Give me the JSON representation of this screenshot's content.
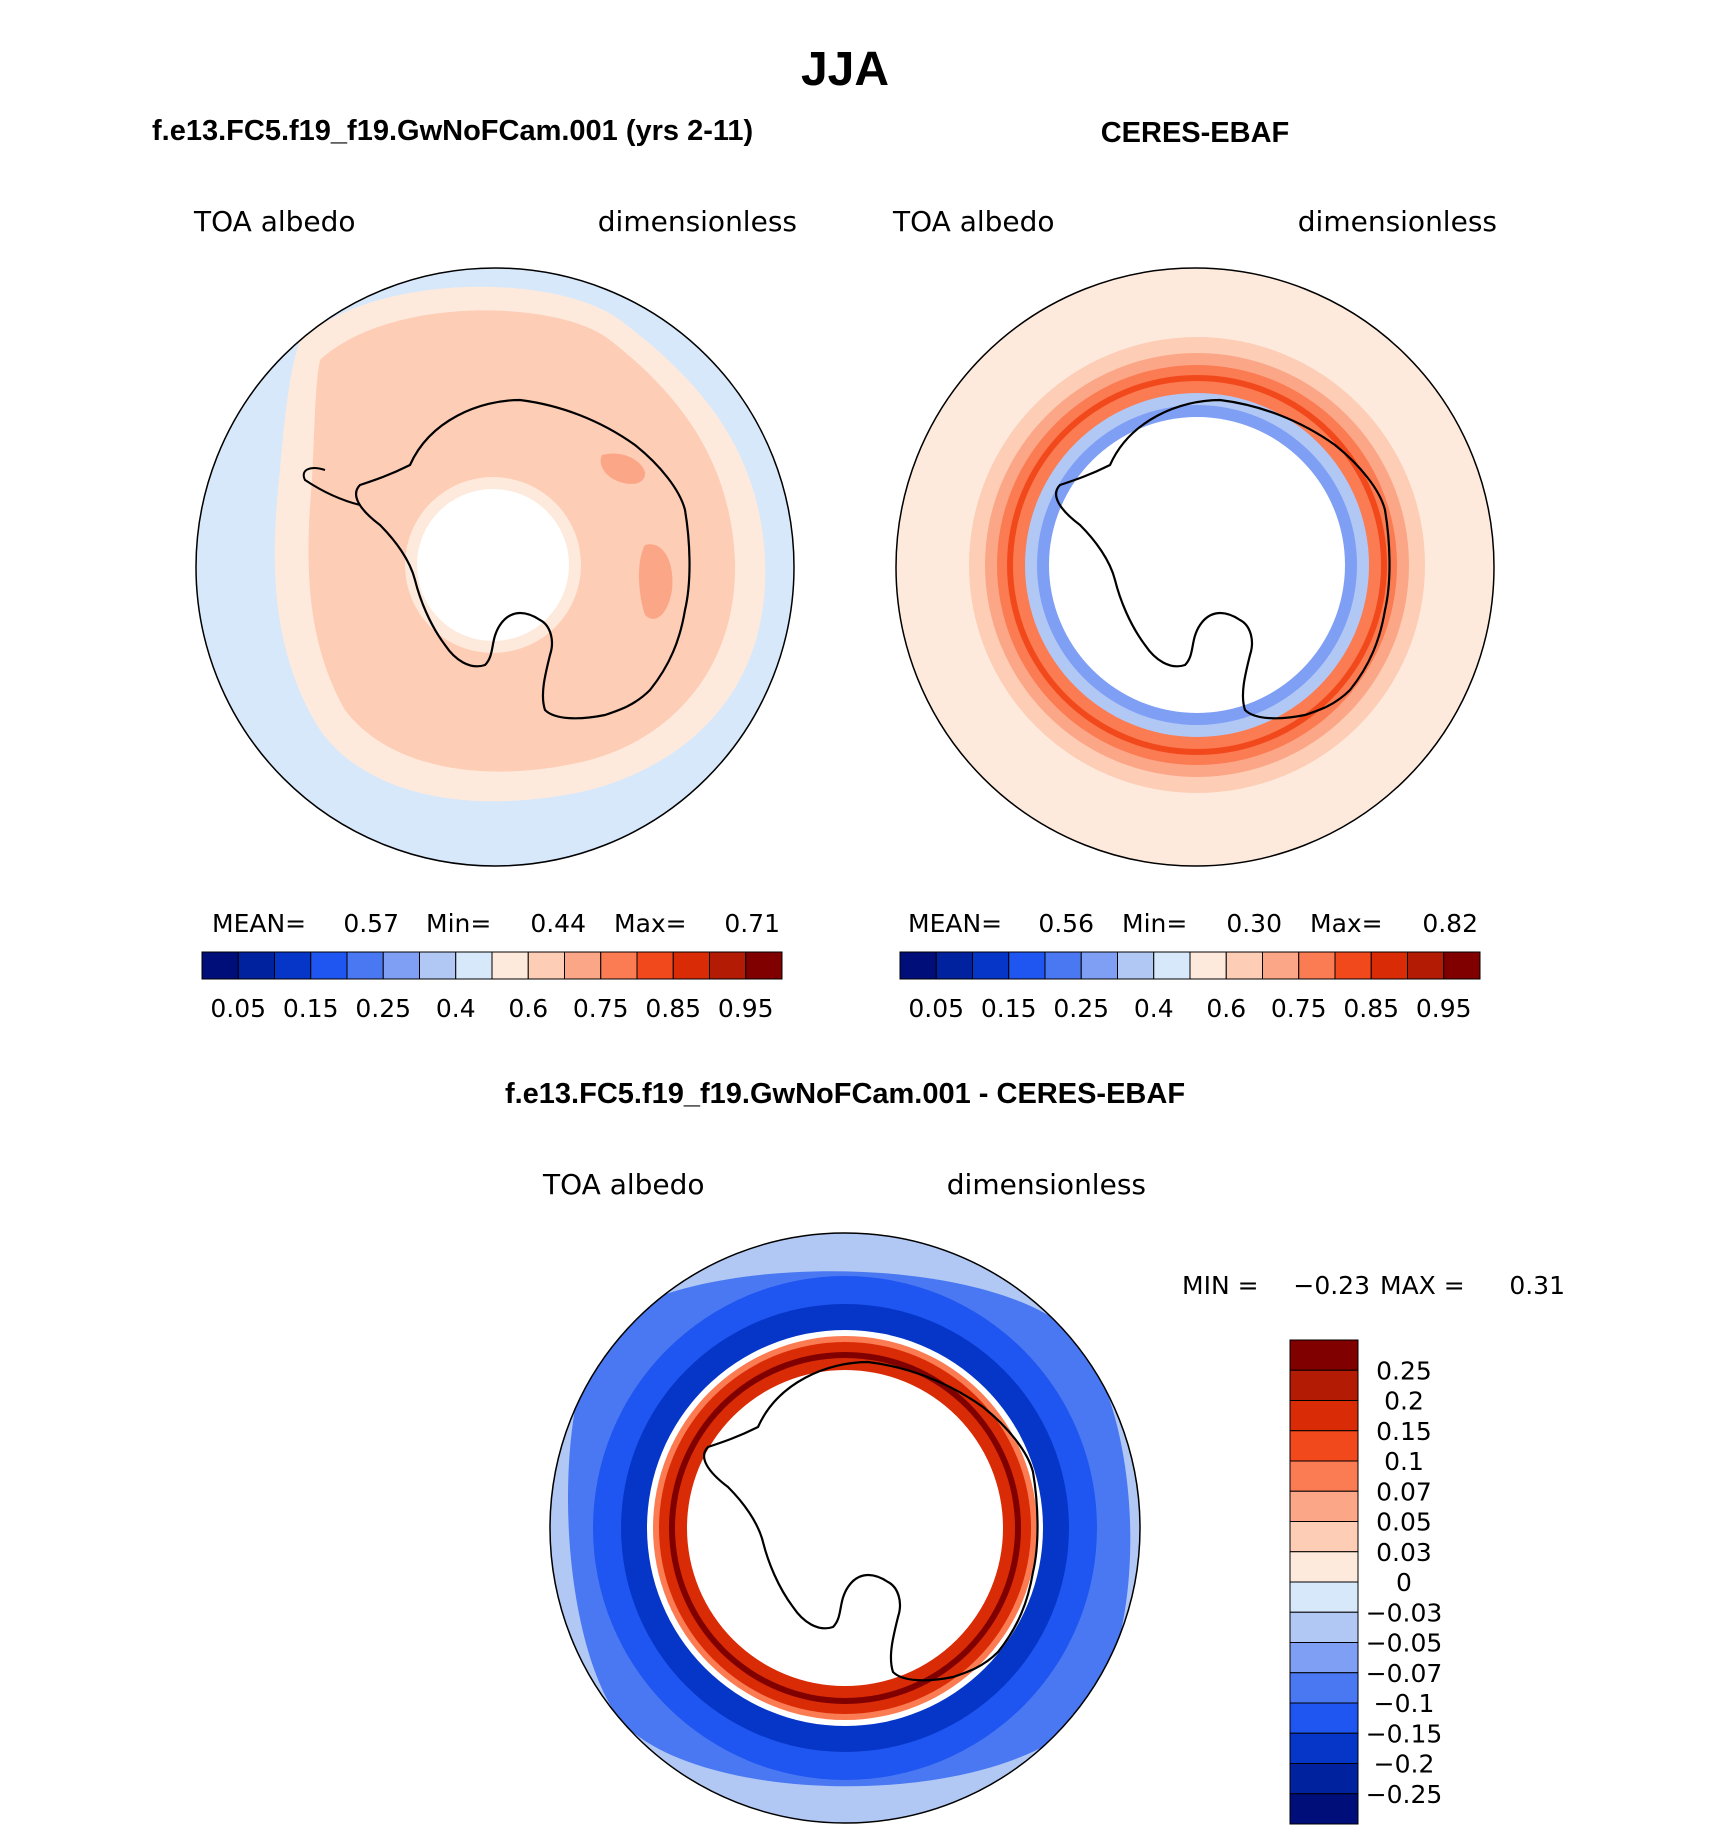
{
  "season": "JJA",
  "panels": [
    {
      "id": "model",
      "case_title": "f.e13.FC5.f19_f19.GwNoFCam.001 (yrs 2-11)",
      "left_label": "TOA albedo",
      "right_label": "dimensionless",
      "stats": {
        "mean_label": "MEAN=",
        "mean": "0.57",
        "min_label": "Min=",
        "min": "0.44",
        "max_label": "Max=",
        "max": "0.71"
      }
    },
    {
      "id": "obs",
      "case_title": "CERES-EBAF",
      "left_label": "TOA albedo",
      "right_label": "dimensionless",
      "stats": {
        "mean_label": "MEAN=",
        "mean": "0.56",
        "min_label": "Min=",
        "min": "0.30",
        "max_label": "Max=",
        "max": "0.82"
      }
    }
  ],
  "abs_colorbar": {
    "colors": [
      "#000e7a",
      "#00229e",
      "#0636c8",
      "#1f55f0",
      "#4a78f2",
      "#7f9ff5",
      "#b1c8f5",
      "#d7e8fb",
      "#feeadc",
      "#fdcdb6",
      "#fca688",
      "#fb7b52",
      "#f2491c",
      "#d92c06",
      "#b31b04",
      "#800000"
    ],
    "tick_labels": [
      "0.05",
      "0.15",
      "0.25",
      "0.4",
      "0.6",
      "0.75",
      "0.85",
      "0.95"
    ]
  },
  "diff_panel": {
    "title": "f.e13.FC5.f19_f19.GwNoFCam.001 - CERES-EBAF",
    "left_label": "TOA albedo",
    "right_label": "dimensionless",
    "stats": {
      "min_label": "MIN =",
      "min": "−0.23",
      "max_label": "MAX =",
      "max": "0.31"
    },
    "colorbar": {
      "colors": [
        "#800000",
        "#b31b04",
        "#d92c06",
        "#f2491c",
        "#fb7b52",
        "#fca688",
        "#fdcdb6",
        "#feeadc",
        "#d7e8fb",
        "#b1c8f5",
        "#7f9ff5",
        "#4a78f2",
        "#1f55f0",
        "#0636c8",
        "#00229e",
        "#000e7a"
      ],
      "tick_labels": [
        "0.25",
        "0.2",
        "0.15",
        "0.1",
        "0.07",
        "0.05",
        "0.03",
        "0",
        "−0.03",
        "−0.05",
        "−0.07",
        "−0.1",
        "−0.15",
        "−0.2",
        "−0.25"
      ]
    }
  },
  "map_colors": {
    "model_ocean": "#d7e8fb",
    "model_edge": "#feeadc",
    "model_main": "#fdcdb6",
    "model_patch": "#fca688",
    "obs_outer": "#feeadc",
    "obs_mid": "#fdcdb6",
    "obs_inner": "#fca688",
    "obs_red": "#fb7b52",
    "obs_dark_red": "#f2491c",
    "obs_blue": "#b1c8f5",
    "obs_blue2": "#7f9ff5",
    "diff_light": "#b1c8f5",
    "diff_mid": "#4a78f2",
    "diff_blue": "#1f55f0",
    "diff_dark": "#0636c8",
    "diff_red_light": "#fb7b52",
    "diff_red": "#d92c06",
    "diff_red_dark": "#800000",
    "coast": "#000000"
  }
}
